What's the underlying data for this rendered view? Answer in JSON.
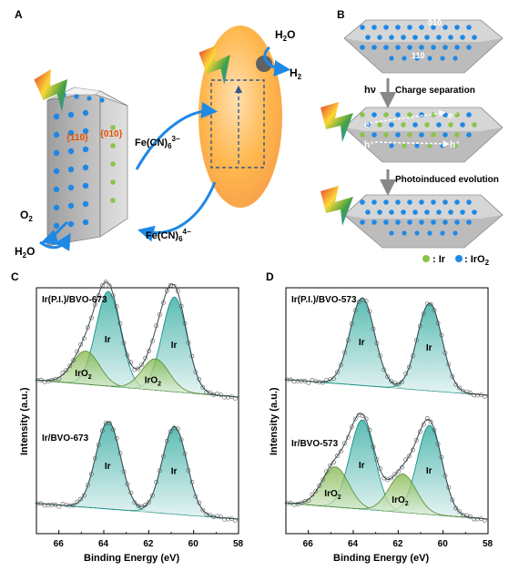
{
  "panels": {
    "A": {
      "label": "A",
      "facet_110": "{110}",
      "facet_010": "{010}",
      "fe_cn_3": "Fe(CN)",
      "fe_cn_3_sub": "6",
      "fe_cn_3_sup": "3−",
      "fe_cn_4": "Fe(CN)",
      "fe_cn_4_sub": "6",
      "fe_cn_4_sup": "4−",
      "o2": "O",
      "o2_sub": "2",
      "h2o_left": "H",
      "h2o_left_sub": "2",
      "h2o_left_end": "O",
      "h2o_top": "H",
      "h2o_top_sub": "2",
      "h2o_top_end": "O",
      "h2": "H",
      "h2_sub": "2"
    },
    "B": {
      "label": "B",
      "facet_010": "010",
      "facet_110": "110",
      "hv": "hν",
      "charge_separation": "Charge separation",
      "photoinduced": "Photoinduced evolution",
      "electron1": "e⁻",
      "electron2": "e⁻",
      "hole1": "h⁺",
      "hole2": "h⁺",
      "legend_ir": ": Ir",
      "legend_iro2": ": IrO",
      "legend_iro2_sub": "2",
      "colors": {
        "ir": "#8bc34a",
        "iro2": "#1e88e5"
      }
    },
    "C": {
      "label": "C",
      "top_title": "Ir(P.I.)/BVO-673",
      "bottom_title": "Ir/BVO-673",
      "peak_ir": "Ir",
      "peak_iro2": "IrO",
      "peak_iro2_sub": "2",
      "ylabel": "Intensity (a.u.)",
      "xlabel": "Binding Energy (eV)",
      "xticks": [
        "66",
        "64",
        "62",
        "60",
        "58"
      ]
    },
    "D": {
      "label": "D",
      "top_title": "Ir(P.I.)/BVO-573",
      "bottom_title": "Ir/BVO-573",
      "peak_ir": "Ir",
      "peak_iro2": "IrO",
      "peak_iro2_sub": "2",
      "ylabel": "Intensity (a.u.)",
      "xlabel": "Binding Energy (eV)",
      "xticks": [
        "66",
        "64",
        "62",
        "60",
        "58"
      ]
    }
  },
  "chart_data": [
    {
      "type": "line",
      "title": "Ir(P.I.)/BVO-673",
      "xlabel": "Binding Energy (eV)",
      "ylabel": "Intensity (a.u.)",
      "xlim": [
        67,
        58
      ],
      "peaks": [
        {
          "name": "Ir",
          "center": 63.8,
          "height": 1.0
        },
        {
          "name": "Ir",
          "center": 60.85,
          "height": 1.0
        },
        {
          "name": "IrO2",
          "center": 64.8,
          "height": 0.35
        },
        {
          "name": "IrO2",
          "center": 61.7,
          "height": 0.33
        }
      ]
    },
    {
      "type": "line",
      "title": "Ir/BVO-673",
      "xlabel": "Binding Energy (eV)",
      "ylabel": "Intensity (a.u.)",
      "xlim": [
        67,
        58
      ],
      "peaks": [
        {
          "name": "Ir",
          "center": 63.8,
          "height": 1.0
        },
        {
          "name": "Ir",
          "center": 60.85,
          "height": 1.0
        }
      ]
    },
    {
      "type": "line",
      "title": "Ir(P.I.)/BVO-573",
      "xlabel": "Binding Energy (eV)",
      "ylabel": "Intensity (a.u.)",
      "xlim": [
        67,
        58
      ],
      "peaks": [
        {
          "name": "Ir",
          "center": 63.6,
          "height": 1.0
        },
        {
          "name": "Ir",
          "center": 60.6,
          "height": 1.0
        }
      ]
    },
    {
      "type": "line",
      "title": "Ir/BVO-573",
      "xlabel": "Binding Energy (eV)",
      "ylabel": "Intensity (a.u.)",
      "xlim": [
        67,
        58
      ],
      "peaks": [
        {
          "name": "Ir",
          "center": 63.6,
          "height": 1.0
        },
        {
          "name": "Ir",
          "center": 60.6,
          "height": 1.0
        },
        {
          "name": "IrO2",
          "center": 64.8,
          "height": 0.45
        },
        {
          "name": "IrO2",
          "center": 61.8,
          "height": 0.43
        }
      ]
    }
  ]
}
